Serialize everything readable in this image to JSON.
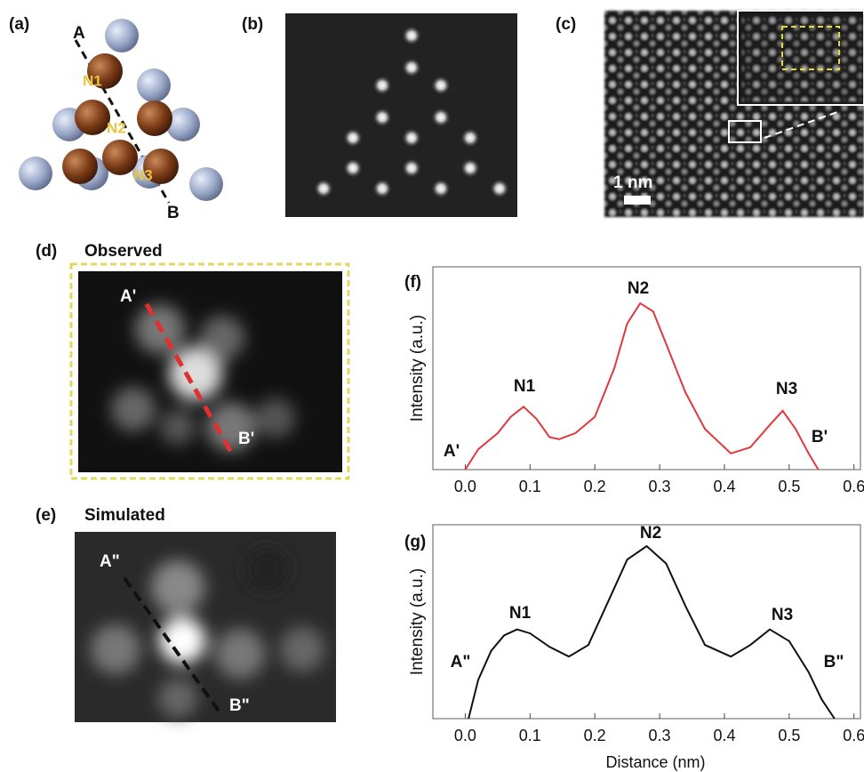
{
  "panels": {
    "a": {
      "label": "(a)",
      "texts": [
        "A",
        "B",
        "N1",
        "N2",
        "N3"
      ]
    },
    "b": {
      "label": "(b)"
    },
    "c": {
      "label": "(c)",
      "scale": "1 nm"
    },
    "d": {
      "label": "(d)",
      "title": "Observed",
      "texts": [
        "A'",
        "B'"
      ]
    },
    "e": {
      "label": "(e)",
      "title": "Simulated",
      "texts": [
        "A\"",
        "B\""
      ]
    }
  },
  "chart_data": [
    {
      "type": "line",
      "panel_label": "(f)",
      "ylabel": "Intensity (a.u.)",
      "color": "#e0393e",
      "x": [
        0,
        0.02,
        0.05,
        0.07,
        0.09,
        0.11,
        0.13,
        0.145,
        0.17,
        0.2,
        0.23,
        0.25,
        0.27,
        0.29,
        0.31,
        0.34,
        0.37,
        0.41,
        0.44,
        0.47,
        0.49,
        0.51,
        0.53,
        0.545
      ],
      "values": [
        0,
        0.1,
        0.18,
        0.26,
        0.31,
        0.25,
        0.16,
        0.15,
        0.18,
        0.26,
        0.5,
        0.72,
        0.82,
        0.78,
        0.62,
        0.38,
        0.2,
        0.08,
        0.11,
        0.22,
        0.29,
        0.2,
        0.08,
        0
      ],
      "xlim": [
        -0.05,
        0.61
      ],
      "ylim": [
        0,
        1
      ],
      "xticks": [
        {
          "value": 0,
          "label": "0.0"
        },
        0.1,
        0.2,
        0.3,
        0.4,
        0.5,
        0.6
      ],
      "annotations": [
        "A'",
        "N1",
        "N2",
        "N3",
        "B'"
      ]
    },
    {
      "type": "line",
      "panel_label": "(g)",
      "ylabel": "Intensity (a.u.)",
      "xlabel": "Distance (nm)",
      "color": "#111111",
      "x": [
        0.005,
        0.02,
        0.04,
        0.06,
        0.08,
        0.1,
        0.13,
        0.16,
        0.19,
        0.22,
        0.25,
        0.28,
        0.31,
        0.34,
        0.37,
        0.41,
        0.44,
        0.47,
        0.5,
        0.53,
        0.55,
        0.57
      ],
      "values": [
        0,
        0.2,
        0.35,
        0.43,
        0.46,
        0.44,
        0.37,
        0.32,
        0.38,
        0.6,
        0.82,
        0.89,
        0.8,
        0.58,
        0.38,
        0.32,
        0.38,
        0.46,
        0.4,
        0.24,
        0.1,
        0
      ],
      "xlim": [
        -0.05,
        0.61
      ],
      "ylim": [
        0,
        1
      ],
      "xticks": [
        {
          "value": 0,
          "label": "0.0"
        },
        0.1,
        0.2,
        0.3,
        0.4,
        0.5,
        0.6
      ],
      "annotations": [
        "A\"",
        "N1",
        "N2",
        "N3",
        "B\""
      ]
    }
  ]
}
